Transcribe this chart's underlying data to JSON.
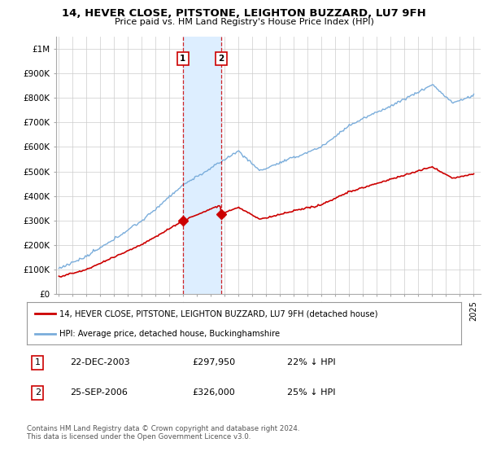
{
  "title": "14, HEVER CLOSE, PITSTONE, LEIGHTON BUZZARD, LU7 9FH",
  "subtitle": "Price paid vs. HM Land Registry's House Price Index (HPI)",
  "ylim": [
    0,
    1050000
  ],
  "yticks": [
    0,
    100000,
    200000,
    300000,
    400000,
    500000,
    600000,
    700000,
    800000,
    900000,
    1000000
  ],
  "ytick_labels": [
    "£0",
    "£100K",
    "£200K",
    "£300K",
    "£400K",
    "£500K",
    "£600K",
    "£700K",
    "£800K",
    "£900K",
    "£1M"
  ],
  "hpi_color": "#7aaddb",
  "price_color": "#cc0000",
  "span_color": "#ddeeff",
  "transaction1_year": 2003.97,
  "transaction1_price": 297950,
  "transaction1_label": "1",
  "transaction2_year": 2006.73,
  "transaction2_price": 326000,
  "transaction2_label": "2",
  "legend_line1": "14, HEVER CLOSE, PITSTONE, LEIGHTON BUZZARD, LU7 9FH (detached house)",
  "legend_line2": "HPI: Average price, detached house, Buckinghamshire",
  "row1_num": "1",
  "row1_date": "22-DEC-2003",
  "row1_price": "£297,950",
  "row1_pct": "22% ↓ HPI",
  "row2_num": "2",
  "row2_date": "25-SEP-2006",
  "row2_price": "£326,000",
  "row2_pct": "25% ↓ HPI",
  "footer": "Contains HM Land Registry data © Crown copyright and database right 2024.\nThis data is licensed under the Open Government Licence v3.0.",
  "background_color": "#ffffff",
  "grid_color": "#cccccc"
}
